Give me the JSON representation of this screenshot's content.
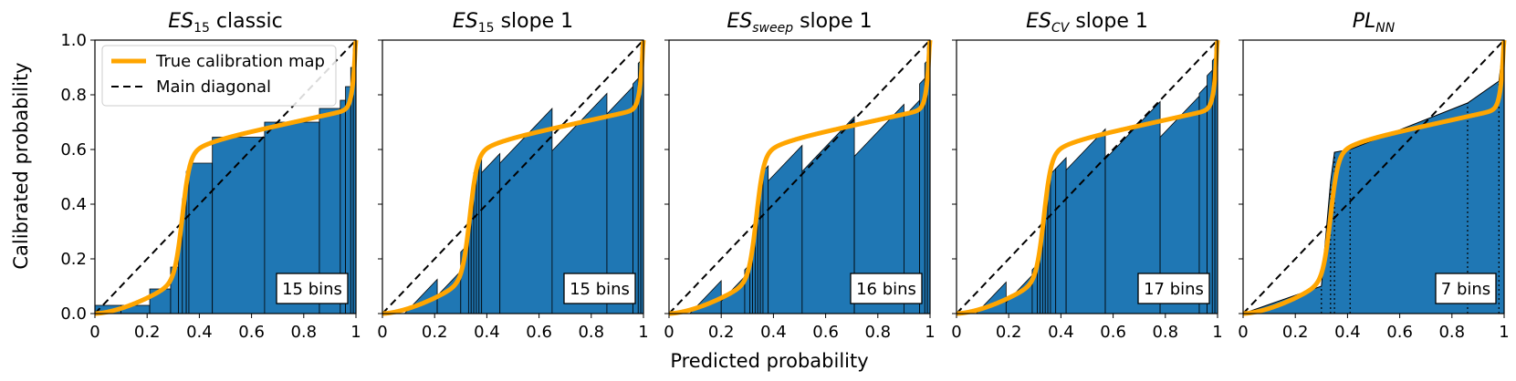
{
  "chart_data": {
    "type": "bar",
    "xlabel": "Predicted probability",
    "ylabel": "Calibrated probability",
    "xlim": [
      0,
      1
    ],
    "ylim": [
      0,
      1
    ],
    "x_tick_labels": [
      "0",
      "0.2",
      "0.4",
      "0.6",
      "0.8",
      "1"
    ],
    "y_tick_labels": [
      "0.0",
      "0.2",
      "0.4",
      "0.6",
      "0.8",
      "1.0"
    ],
    "colors": {
      "bars": "#1f77b4",
      "true_map": "#ffa500",
      "diagonal": "#000000"
    },
    "legend": {
      "position": "top-left of first panel",
      "entries": [
        {
          "label": "True calibration map",
          "style": "orange-solid"
        },
        {
          "label": "Main diagonal",
          "style": "black-dashed"
        }
      ]
    },
    "panels": [
      {
        "title_main": "ES",
        "title_sub": "15",
        "title_rest": " classic",
        "bins_label": "15 bins",
        "mode": "flat",
        "edges": [
          0,
          0.1,
          0.21,
          0.29,
          0.32,
          0.335,
          0.35,
          0.36,
          0.45,
          0.65,
          0.86,
          0.94,
          0.96,
          0.98,
          0.99,
          1.0
        ],
        "values": [
          0.03,
          0.03,
          0.09,
          0.17,
          0.28,
          0.42,
          0.52,
          0.55,
          0.645,
          0.7,
          0.75,
          0.78,
          0.83,
          0.9,
          0.97
        ]
      },
      {
        "title_main": "ES",
        "title_sub": "15",
        "title_rest": " slope 1",
        "bins_label": "15 bins",
        "mode": "slope",
        "edges": [
          0,
          0.21,
          0.3,
          0.33,
          0.34,
          0.35,
          0.36,
          0.37,
          0.38,
          0.45,
          0.65,
          0.86,
          0.96,
          0.98,
          0.99,
          1.0
        ],
        "values": [
          0.02,
          0.11,
          0.24,
          0.34,
          0.45,
          0.52,
          0.54,
          0.56,
          0.55,
          0.65,
          0.7,
          0.78,
          0.85,
          0.92,
          0.98
        ]
      },
      {
        "title_main": "ES",
        "title_sub": "sweep",
        "title_rest": " slope 1",
        "bins_label": "16 bins",
        "mode": "slope",
        "edges": [
          0,
          0.2,
          0.29,
          0.31,
          0.32,
          0.33,
          0.34,
          0.35,
          0.36,
          0.38,
          0.51,
          0.71,
          0.9,
          0.96,
          0.98,
          0.99,
          1.0
        ],
        "values": [
          0.02,
          0.09,
          0.17,
          0.22,
          0.28,
          0.35,
          0.44,
          0.5,
          0.53,
          0.55,
          0.62,
          0.67,
          0.75,
          0.85,
          0.92,
          0.98
        ]
      },
      {
        "title_main": "ES",
        "title_sub": "CV",
        "title_rest": " slope 1",
        "bins_label": "17 bins",
        "mode": "slope",
        "edges": [
          0,
          0.19,
          0.29,
          0.31,
          0.32,
          0.33,
          0.34,
          0.35,
          0.36,
          0.38,
          0.42,
          0.57,
          0.78,
          0.93,
          0.96,
          0.98,
          0.99,
          1.0
        ],
        "values": [
          0.02,
          0.09,
          0.17,
          0.22,
          0.28,
          0.35,
          0.44,
          0.5,
          0.52,
          0.55,
          0.6,
          0.67,
          0.72,
          0.82,
          0.88,
          0.93,
          0.98
        ]
      },
      {
        "title_main": "PL",
        "title_sub": "NN",
        "title_rest": "",
        "bins_label": "7 bins",
        "mode": "piecewise",
        "knots_x": [
          0,
          0.3,
          0.335,
          0.35,
          0.41,
          0.86,
          0.98,
          1.0
        ],
        "knots_y": [
          0.0,
          0.1,
          0.48,
          0.59,
          0.6,
          0.77,
          0.85,
          1.0
        ]
      }
    ]
  }
}
